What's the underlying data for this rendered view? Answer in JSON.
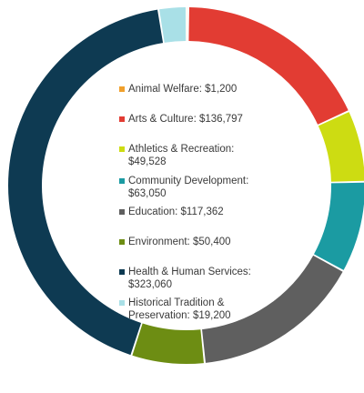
{
  "chart_data": {
    "type": "pie",
    "title": "",
    "categories": [
      "Animal Welfare",
      "Arts & Culture",
      "Athletics & Recreation",
      "Community Development",
      "Education",
      "Environment",
      "Health & Human Services",
      "Historical Tradition & Preservation"
    ],
    "values": [
      1200,
      136797,
      49528,
      63050,
      117362,
      50400,
      323060,
      19200
    ],
    "colors": [
      "#f0a02c",
      "#e23c33",
      "#cddc12",
      "#1b9ba2",
      "#5f5f5f",
      "#6d8d13",
      "#0e3a52",
      "#a9e0e7"
    ],
    "legend_labels": [
      "Animal Welfare: $1,200",
      "Arts & Culture: $136,797",
      "Athletics & Recreation:\n$49,528",
      "Community Development:\n$63,050",
      "Education: $117,362",
      "Environment: $50,400",
      "Health & Human Services:\n$323,060",
      "Historical Tradition &\nPreservation: $19,200"
    ],
    "legend_placement": "center"
  }
}
